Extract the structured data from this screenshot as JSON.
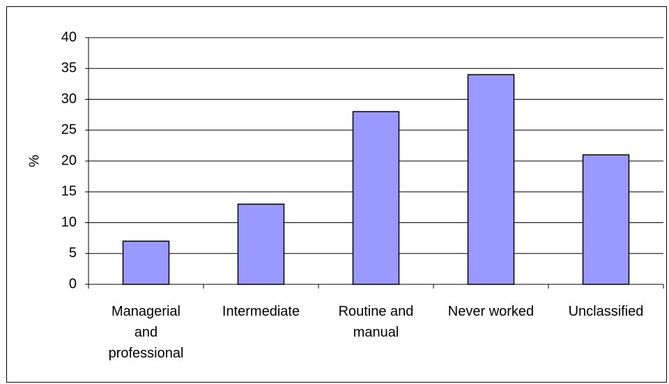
{
  "chart_data": {
    "type": "bar",
    "y_label": "%",
    "categories": [
      "Managerial and professional",
      "Intermediate",
      "Routine and manual",
      "Never worked",
      "Unclassified"
    ],
    "values": [
      7,
      13,
      28,
      34,
      21
    ],
    "color": "#9999ff",
    "ylim": [
      0,
      40
    ],
    "yticks": [
      0,
      5,
      10,
      15,
      20,
      25,
      30,
      35,
      40
    ],
    "grid": true
  }
}
